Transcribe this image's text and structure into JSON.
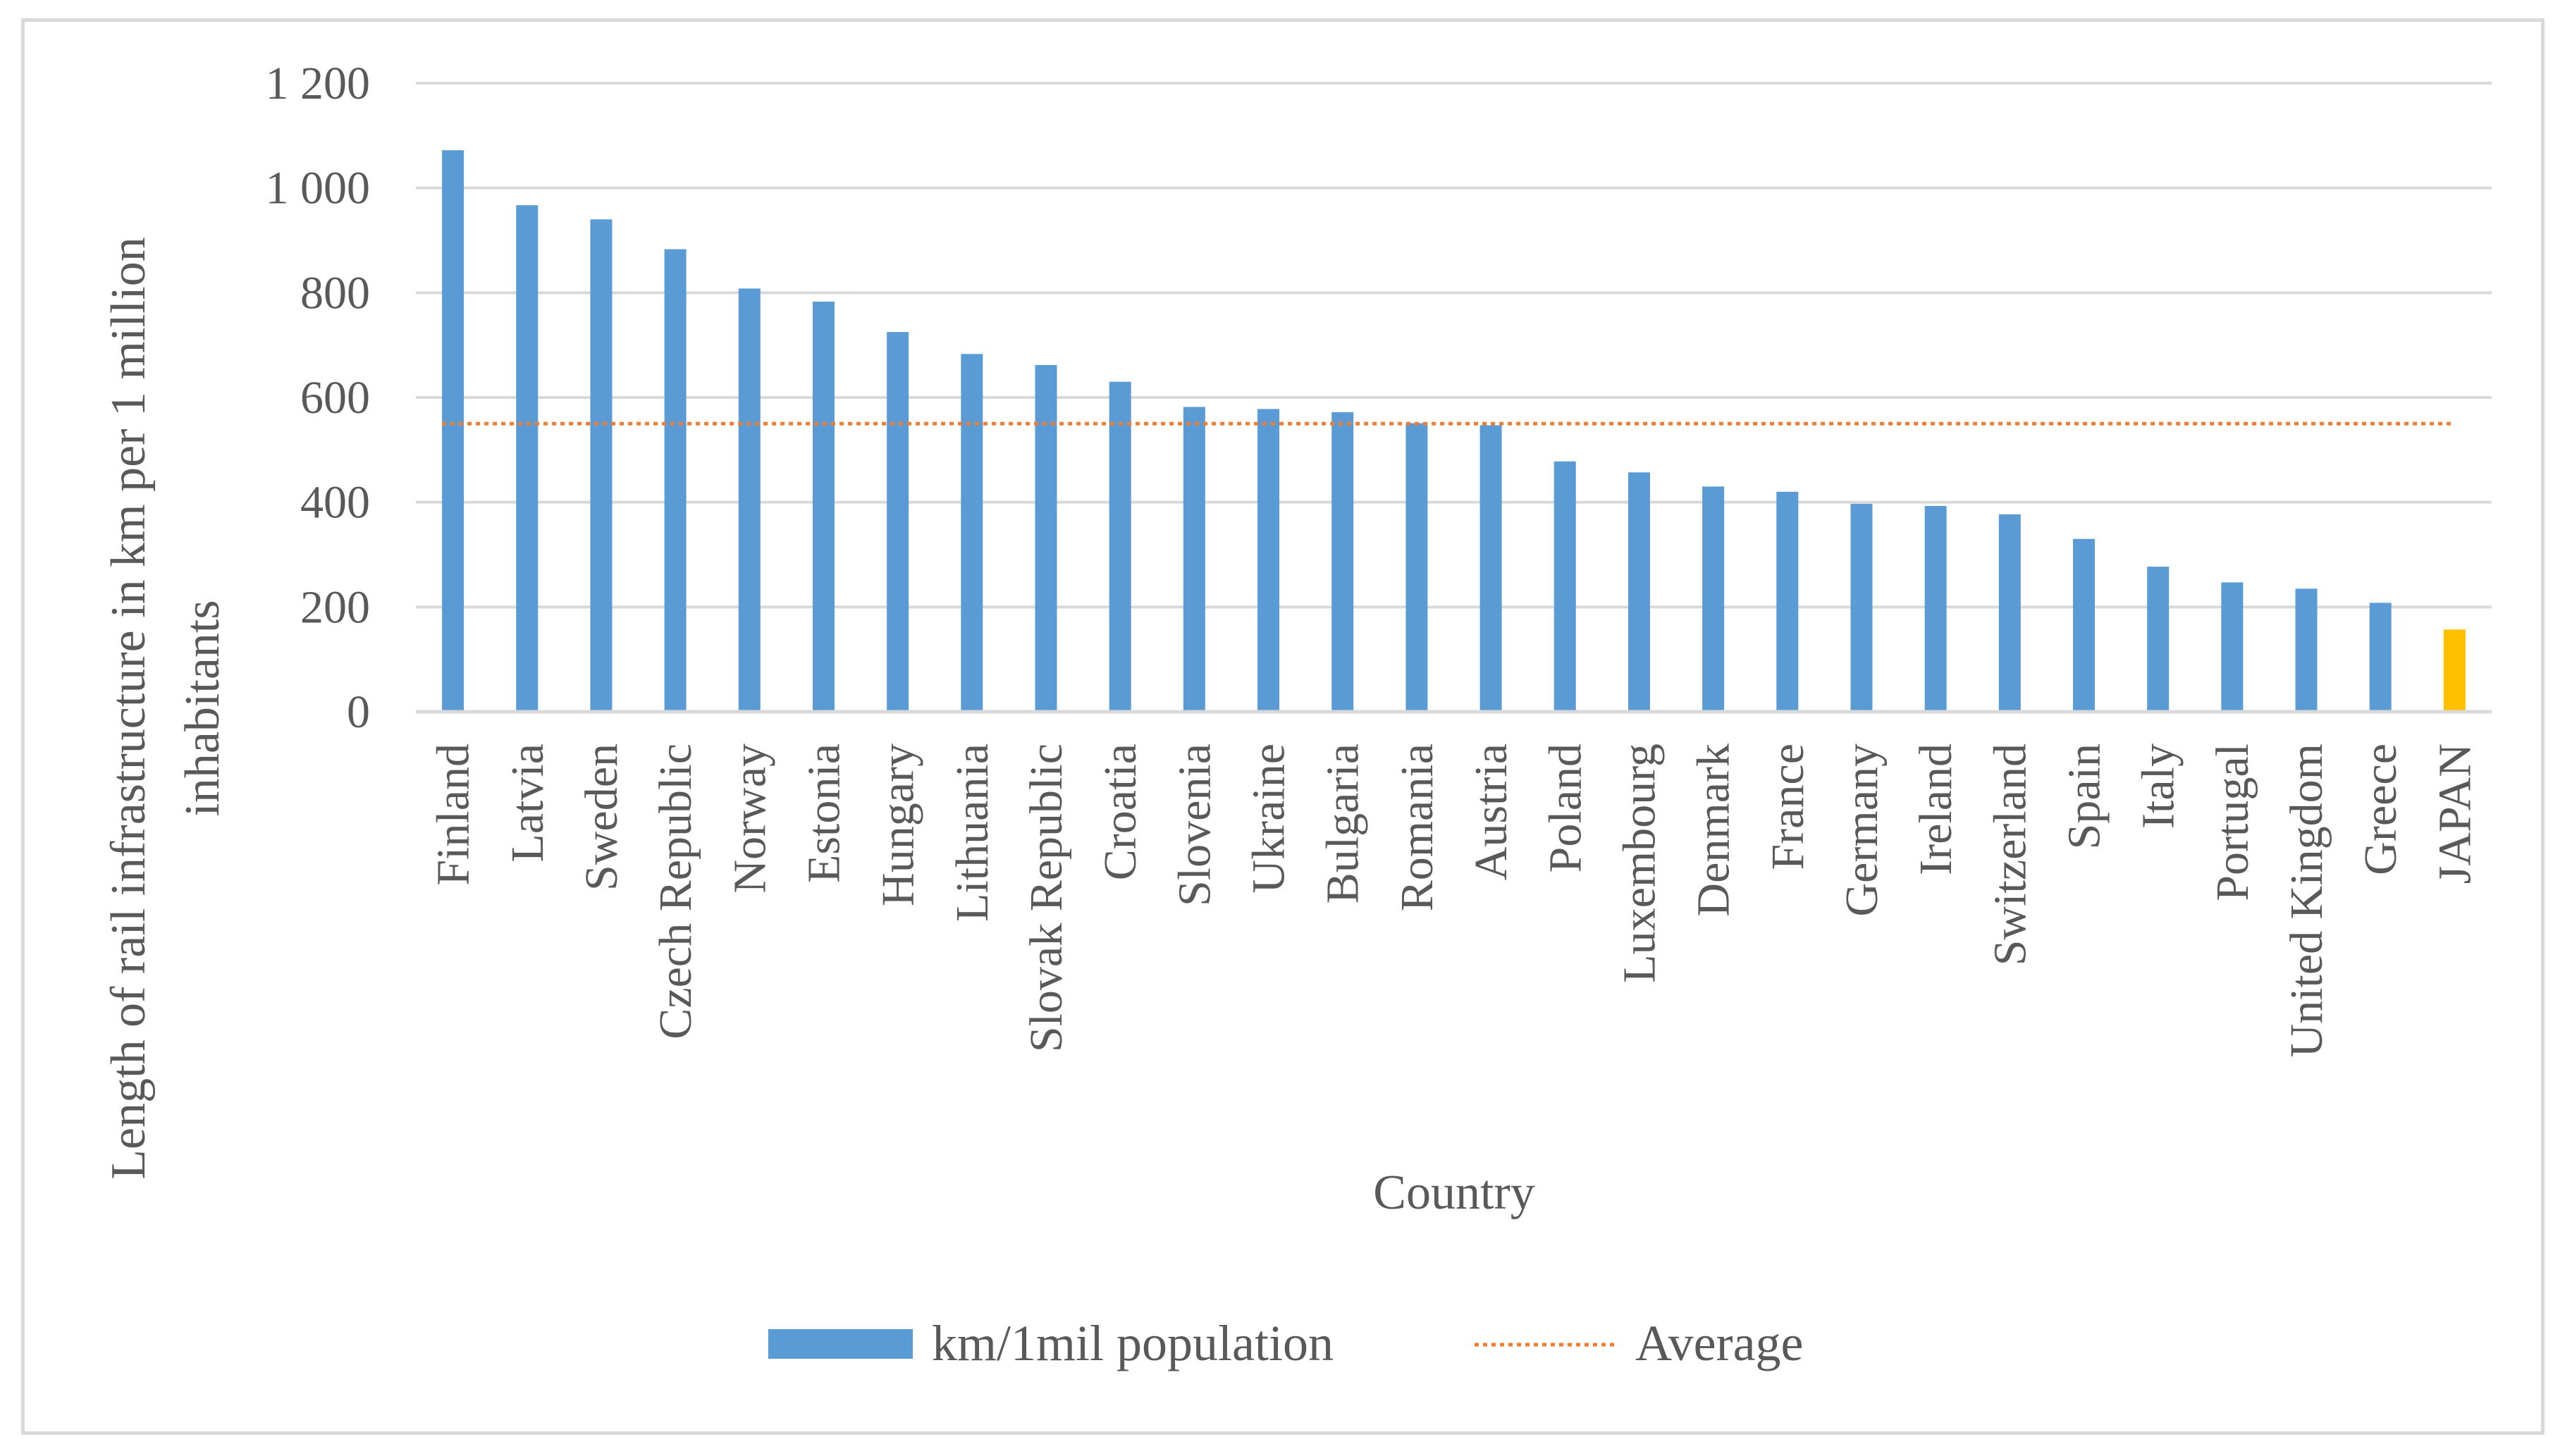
{
  "chart_data": {
    "type": "bar",
    "title": "",
    "xlabel": "Country",
    "ylabel": "Length of rail infrastructure  in km per 1 million inhabitants",
    "ylabel_lines": [
      "Length of rail infrastructure  in km per 1 million",
      "inhabitants"
    ],
    "ylim": [
      0,
      1200
    ],
    "yticks": [
      0,
      200,
      400,
      600,
      800,
      1000,
      1200
    ],
    "ytick_labels": [
      "0",
      "200",
      "400",
      "600",
      "800",
      "1 000",
      "1 200"
    ],
    "grid": true,
    "legend_position": "bottom",
    "categories": [
      "Finland",
      "Latvia",
      "Sweden",
      "Czech Republic",
      "Norway",
      "Estonia",
      "Hungary",
      "Lithuania",
      "Slovak Republic",
      "Croatia",
      "Slovenia",
      "Ukraine",
      "Bulgaria",
      "Romania",
      "Austria",
      "Poland",
      "Luxembourg",
      "Denmark",
      "France",
      "Germany",
      "Ireland",
      "Switzerland",
      "Spain",
      "Italy",
      "Portugal",
      "United Kingdom",
      "Greece",
      "JAPAN"
    ],
    "series": [
      {
        "name": "km/1mil population",
        "type": "bar",
        "color": "#5b9bd5",
        "highlight_color": "#ffc000",
        "highlight_category": "JAPAN",
        "values": [
          1072,
          967,
          940,
          883,
          808,
          783,
          725,
          683,
          662,
          630,
          582,
          578,
          572,
          551,
          547,
          478,
          457,
          430,
          420,
          397,
          393,
          377,
          330,
          277,
          247,
          235,
          208,
          157
        ]
      },
      {
        "name": "Average",
        "type": "line",
        "style": "dotted",
        "color": "#ed7d31",
        "value": 550
      }
    ]
  }
}
